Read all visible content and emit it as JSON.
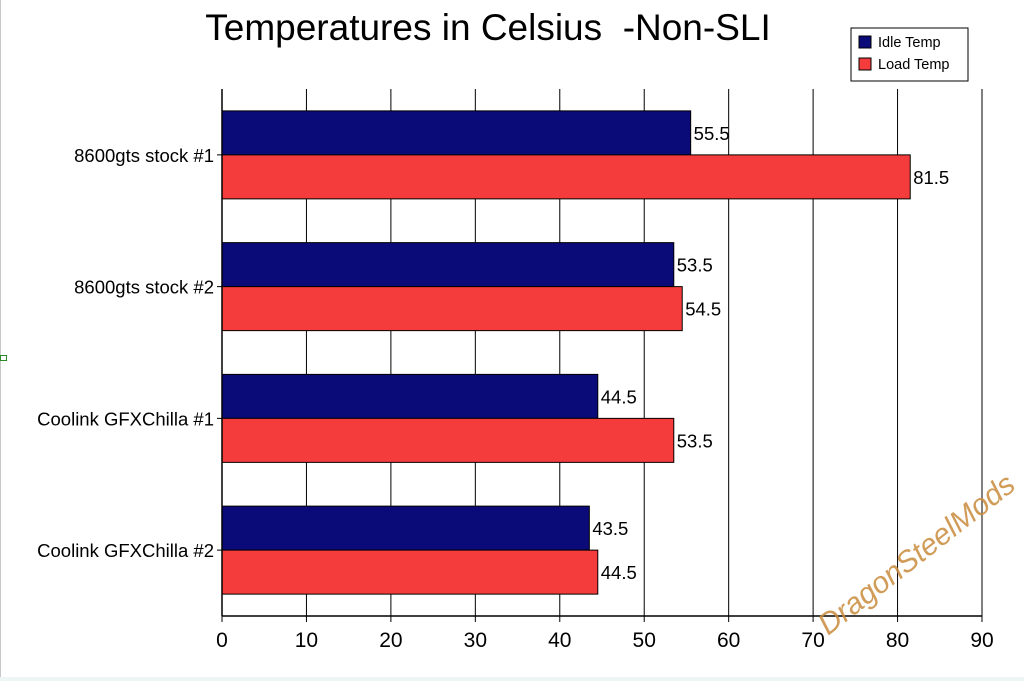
{
  "chart_data": {
    "type": "bar",
    "orientation": "horizontal",
    "title": "Temperatures in Celsius  -Non-SLI",
    "xlabel": "",
    "ylabel": "",
    "categories": [
      "8600gts stock #1",
      "8600gts stock #2",
      "Coolink GFXChilla #1",
      "Coolink GFXChilla #2"
    ],
    "series": [
      {
        "name": "Idle Temp",
        "color": "#0a0a78",
        "values": [
          55.5,
          53.5,
          44.5,
          43.5
        ]
      },
      {
        "name": "Load Temp",
        "color": "#f53c3c",
        "values": [
          81.5,
          54.5,
          53.5,
          44.5
        ]
      }
    ],
    "xlim": [
      0,
      90
    ],
    "xticks": [
      0,
      10,
      20,
      30,
      40,
      50,
      60,
      70,
      80,
      90
    ],
    "grid": true,
    "legend": "top-right",
    "data_labels": true
  },
  "watermark": "DragonSteelMods"
}
